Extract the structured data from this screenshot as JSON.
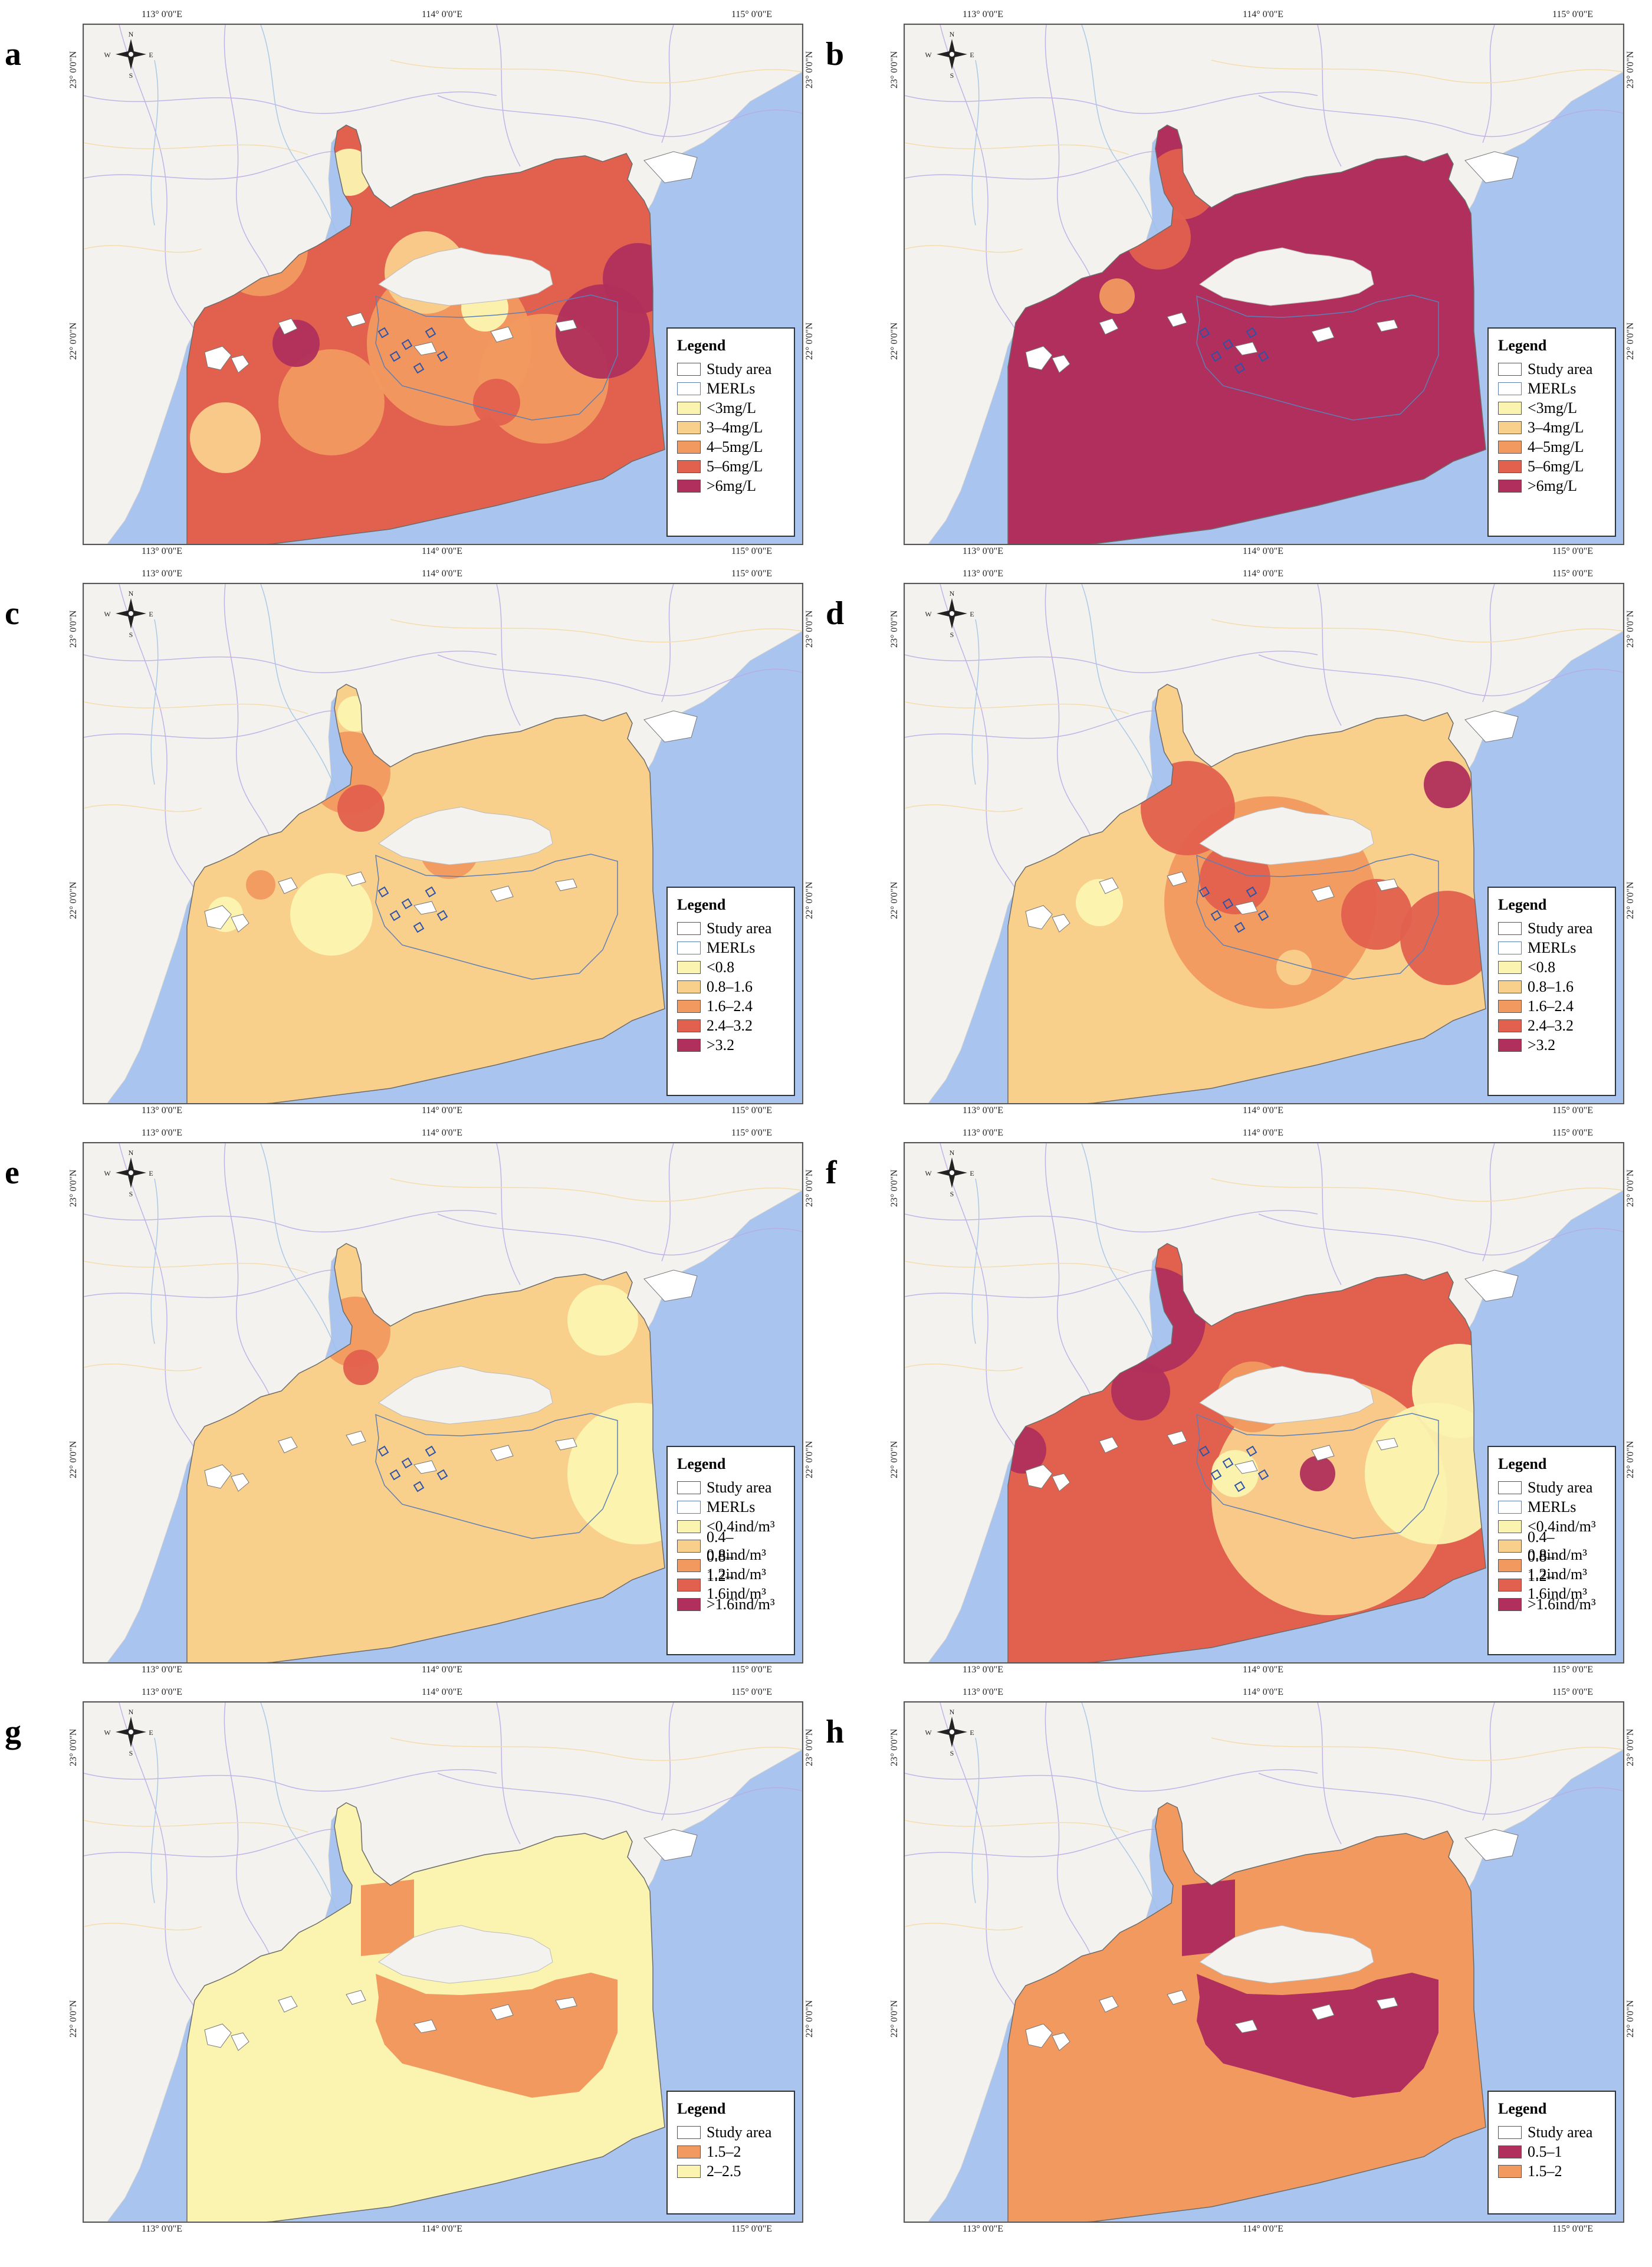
{
  "figure": {
    "coords": {
      "top_left": "113° 0'0\"E",
      "top_mid": "114° 0'0\"E",
      "top_right": "115° 0'0\"E",
      "lat_top": "23° 0'0\"N",
      "lat_mid": "22° 0'0\"N"
    },
    "compass": {
      "n": "N",
      "s": "S",
      "e": "E",
      "w": "W"
    },
    "land_color": "#f3f2ee",
    "water_color": "#a9c4ee"
  },
  "panels": [
    {
      "label": "a",
      "title": "Legend",
      "items": [
        {
          "label": "Study area",
          "color": "#ffffff"
        },
        {
          "label": "MERLs",
          "color": "#ffffff"
        },
        {
          "label": "<3mg/L",
          "color": "#fbf4b0"
        },
        {
          "label": "3–4mg/L",
          "color": "#f9cf8c"
        },
        {
          "label": "4–5mg/L",
          "color": "#f1995f"
        },
        {
          "label": "5–6mg/L",
          "color": "#e2604e"
        },
        {
          "label": ">6mg/L",
          "color": "#b02f5c"
        }
      ]
    },
    {
      "label": "b",
      "title": "Legend",
      "items": [
        {
          "label": "Study area",
          "color": "#ffffff"
        },
        {
          "label": "MERLs",
          "color": "#ffffff"
        },
        {
          "label": "<3mg/L",
          "color": "#fbf4b0"
        },
        {
          "label": "3–4mg/L",
          "color": "#f9cf8c"
        },
        {
          "label": "4–5mg/L",
          "color": "#f1995f"
        },
        {
          "label": "5–6mg/L",
          "color": "#e2604e"
        },
        {
          "label": ">6mg/L",
          "color": "#b02f5c"
        }
      ]
    },
    {
      "label": "c",
      "title": "Legend",
      "items": [
        {
          "label": "Study area",
          "color": "#ffffff"
        },
        {
          "label": "MERLs",
          "color": "#ffffff"
        },
        {
          "label": "<0.8",
          "color": "#fbf4b0"
        },
        {
          "label": "0.8–1.6",
          "color": "#f9cf8c"
        },
        {
          "label": "1.6–2.4",
          "color": "#f1995f"
        },
        {
          "label": "2.4–3.2",
          "color": "#e2604e"
        },
        {
          "label": ">3.2",
          "color": "#b02f5c"
        }
      ]
    },
    {
      "label": "d",
      "title": "Legend",
      "items": [
        {
          "label": "Study area",
          "color": "#ffffff"
        },
        {
          "label": "MERLs",
          "color": "#ffffff"
        },
        {
          "label": "<0.8",
          "color": "#fbf4b0"
        },
        {
          "label": "0.8–1.6",
          "color": "#f9cf8c"
        },
        {
          "label": "1.6–2.4",
          "color": "#f1995f"
        },
        {
          "label": "2.4–3.2",
          "color": "#e2604e"
        },
        {
          "label": ">3.2",
          "color": "#b02f5c"
        }
      ]
    },
    {
      "label": "e",
      "title": "Legend",
      "items": [
        {
          "label": "Study area",
          "color": "#ffffff"
        },
        {
          "label": "MERLs",
          "color": "#ffffff"
        },
        {
          "label": "<0.4ind/m³",
          "color": "#fbf4b0"
        },
        {
          "label": "0.4–0.8ind/m³",
          "color": "#f9cf8c"
        },
        {
          "label": "0.8–1.2ind/m³",
          "color": "#f1995f"
        },
        {
          "label": "1.2–1.6ind/m³",
          "color": "#e2604e"
        },
        {
          "label": ">1.6ind/m³",
          "color": "#b02f5c"
        }
      ]
    },
    {
      "label": "f",
      "title": "Legend",
      "items": [
        {
          "label": "Study area",
          "color": "#ffffff"
        },
        {
          "label": "MERLs",
          "color": "#ffffff"
        },
        {
          "label": "<0.4ind/m³",
          "color": "#fbf4b0"
        },
        {
          "label": "0.4–0.8ind/m³",
          "color": "#f9cf8c"
        },
        {
          "label": "0.8–1.2ind/m³",
          "color": "#f1995f"
        },
        {
          "label": "1.2–1.6ind/m³",
          "color": "#e2604e"
        },
        {
          "label": ">1.6ind/m³",
          "color": "#b02f5c"
        }
      ]
    },
    {
      "label": "g",
      "title": "Legend",
      "items": [
        {
          "label": "Study area",
          "color": "#ffffff"
        },
        {
          "label": "1.5–2",
          "color": "#f1995f"
        },
        {
          "label": "2–2.5",
          "color": "#fbf4b0"
        }
      ]
    },
    {
      "label": "h",
      "title": "Legend",
      "items": [
        {
          "label": "Study area",
          "color": "#ffffff"
        },
        {
          "label": "0.5–1",
          "color": "#b02f5c"
        },
        {
          "label": "1.5–2",
          "color": "#f1995f"
        }
      ]
    }
  ]
}
